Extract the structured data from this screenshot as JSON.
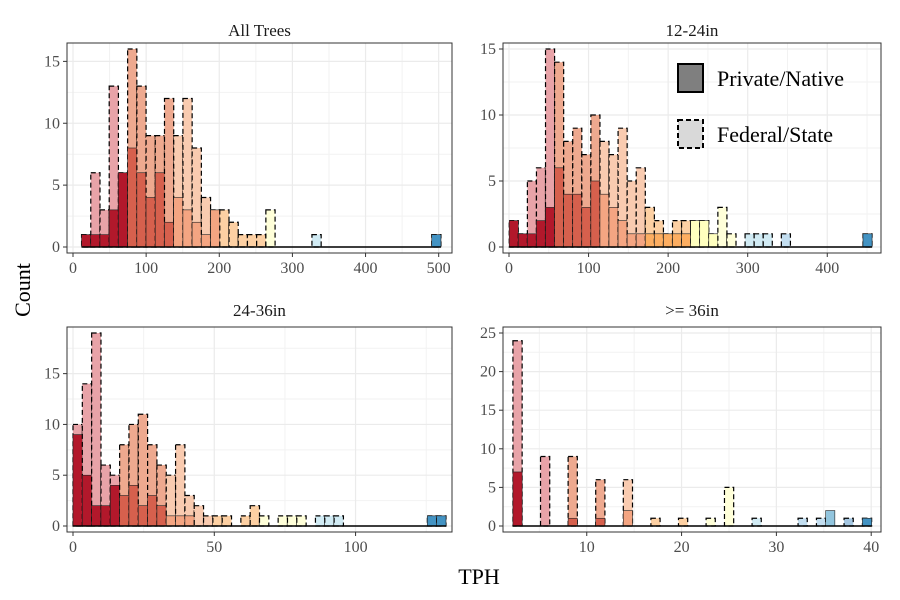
{
  "figure": {
    "xlabel": "TPH",
    "ylabel": "Count",
    "legend": [
      {
        "label": "Private/Native",
        "fill": "#7f7f7f",
        "dashed": false
      },
      {
        "label": "Federal/State",
        "fill": "#d9d9d9",
        "dashed": true
      }
    ]
  },
  "chart_data": [
    {
      "type": "bar",
      "title": "All Trees",
      "xlim": [
        0,
        510
      ],
      "ylim": [
        0,
        16
      ],
      "xticks": [
        0,
        100,
        200,
        300,
        400,
        500
      ],
      "yticks": [
        0,
        5,
        10,
        15
      ],
      "bar_width": 12.6,
      "x": [
        18,
        30.6,
        43.2,
        55.8,
        68.4,
        81,
        93.6,
        106.2,
        118.8,
        131.4,
        144,
        156.6,
        169.2,
        181.8,
        194.4,
        207,
        219.6,
        232.2,
        244.8,
        257.4,
        270,
        282.6,
        295.2,
        307.8,
        320.4,
        333,
        345.6,
        358.2,
        370.8,
        383.4,
        396,
        408.6,
        421.2,
        433.8,
        446.4,
        459,
        471.6,
        484.2,
        496.8
      ],
      "series": [
        {
          "name": "Federal/State",
          "values": [
            1,
            6,
            3,
            13,
            6,
            16,
            13,
            9,
            9,
            12,
            9,
            12,
            8,
            4,
            3,
            3,
            2,
            1,
            1,
            1,
            3,
            0,
            0,
            0,
            0,
            1,
            0,
            0,
            0,
            0,
            0,
            0,
            0,
            0,
            0,
            0,
            0,
            0,
            1
          ]
        },
        {
          "name": "Private/Native",
          "values": [
            1,
            1,
            1,
            3,
            6,
            8,
            6,
            4,
            6,
            2,
            4,
            3,
            2,
            1,
            3,
            0,
            0,
            0,
            0,
            0,
            0,
            0,
            0,
            0,
            0,
            0,
            0,
            0,
            0,
            0,
            0,
            0,
            0,
            0,
            0,
            0,
            0,
            0,
            1
          ]
        }
      ]
    },
    {
      "type": "bar",
      "title": "12-24in",
      "xlim": [
        0,
        460
      ],
      "ylim": [
        0,
        15
      ],
      "xticks": [
        0,
        100,
        200,
        300,
        400
      ],
      "yticks": [
        0,
        5,
        10,
        15
      ],
      "bar_width": 11.4,
      "x": [
        6,
        17.4,
        28.8,
        40.2,
        51.6,
        63,
        74.4,
        85.8,
        97.2,
        108.6,
        120,
        131.4,
        142.8,
        154.2,
        165.6,
        177,
        188.4,
        199.8,
        211.2,
        222.6,
        234,
        245.4,
        256.8,
        268.2,
        279.6,
        291,
        302.4,
        313.8,
        325.2,
        336.6,
        348,
        359.4,
        370.8,
        382.2,
        393.6,
        405,
        416.4,
        427.8,
        439.2,
        450.6
      ],
      "series": [
        {
          "name": "Federal/State",
          "values": [
            2,
            1,
            5,
            6,
            15,
            14,
            8,
            9,
            7,
            10,
            8,
            7,
            9,
            5,
            6,
            3,
            2,
            1,
            2,
            2,
            2,
            2,
            1,
            3,
            1,
            0,
            1,
            1,
            1,
            0,
            1,
            0,
            0,
            0,
            0,
            0,
            0,
            0,
            0,
            1
          ]
        },
        {
          "name": "Private/Native",
          "values": [
            2,
            1,
            1,
            2,
            3,
            6,
            4,
            4,
            3,
            5,
            4,
            3,
            2,
            1,
            1,
            1,
            1,
            1,
            1,
            1,
            2,
            2,
            1,
            0,
            0,
            0,
            0,
            0,
            0,
            0,
            0,
            0,
            0,
            0,
            0,
            0,
            0,
            0,
            0,
            1
          ]
        }
      ]
    },
    {
      "type": "bar",
      "title": "24-36in",
      "xlim": [
        0,
        132
      ],
      "ylim": [
        0,
        19
      ],
      "xticks": [
        0,
        50,
        100
      ],
      "yticks": [
        0,
        5,
        10,
        15
      ],
      "bar_width": 3.3,
      "x": [
        1.65,
        4.95,
        8.25,
        11.55,
        14.85,
        18.15,
        21.45,
        24.75,
        28.05,
        31.35,
        34.65,
        37.95,
        41.25,
        44.55,
        47.85,
        51.15,
        54.45,
        57.75,
        61.05,
        64.35,
        67.65,
        70.95,
        74.25,
        77.55,
        80.85,
        84.15,
        87.45,
        90.75,
        94.05,
        97.35,
        100.65,
        103.95,
        107.25,
        110.55,
        113.85,
        117.15,
        120.45,
        123.75,
        127.05,
        130.35
      ],
      "series": [
        {
          "name": "Federal/State",
          "values": [
            10,
            14,
            19,
            6,
            5,
            8,
            10,
            11,
            8,
            6,
            5,
            8,
            3,
            2,
            1,
            1,
            1,
            0,
            1,
            2,
            1,
            0,
            1,
            1,
            1,
            0,
            1,
            1,
            1,
            0,
            0,
            0,
            0,
            0,
            0,
            0,
            0,
            0,
            1,
            1
          ]
        },
        {
          "name": "Private/Native",
          "values": [
            9,
            5,
            2,
            2,
            4,
            3,
            4,
            2,
            3,
            2,
            1,
            1,
            1,
            0,
            0,
            0,
            0,
            0,
            0,
            0,
            0,
            0,
            0,
            0,
            0,
            0,
            0,
            0,
            0,
            0,
            0,
            0,
            0,
            0,
            0,
            0,
            0,
            0,
            1,
            1
          ]
        }
      ]
    },
    {
      "type": "bar",
      "title": ">= 36in",
      "xlim": [
        1.8,
        40.4
      ],
      "ylim": [
        0,
        25
      ],
      "xticks": [
        10,
        20,
        30,
        40
      ],
      "yticks": [
        0,
        5,
        10,
        15,
        20,
        25
      ],
      "bar_width": 0.97,
      "x": [
        2.7,
        3.67,
        4.64,
        5.61,
        6.58,
        7.55,
        8.52,
        9.49,
        10.46,
        11.43,
        12.4,
        13.37,
        14.34,
        15.31,
        16.28,
        17.25,
        18.22,
        19.19,
        20.16,
        21.13,
        22.1,
        23.07,
        24.04,
        25.01,
        25.98,
        26.95,
        27.92,
        28.89,
        29.86,
        30.83,
        31.8,
        32.77,
        33.74,
        34.71,
        35.68,
        36.65,
        37.62,
        38.59,
        39.56
      ],
      "series": [
        {
          "name": "Federal/State",
          "values": [
            24,
            0,
            0,
            9,
            0,
            0,
            9,
            0,
            0,
            6,
            0,
            0,
            6,
            0,
            0,
            1,
            0,
            0,
            1,
            0,
            0,
            1,
            0,
            5,
            0,
            0,
            1,
            0,
            0,
            0,
            0,
            1,
            0,
            1,
            0,
            0,
            1,
            0,
            1
          ]
        },
        {
          "name": "Private/Native",
          "values": [
            7,
            0,
            0,
            0,
            0,
            0,
            1,
            0,
            0,
            1,
            0,
            0,
            2,
            0,
            0,
            0,
            0,
            0,
            0,
            0,
            0,
            0,
            0,
            0,
            0,
            0,
            0,
            0,
            0,
            0,
            0,
            0,
            0,
            0,
            2,
            0,
            0,
            0,
            1
          ]
        }
      ]
    }
  ]
}
